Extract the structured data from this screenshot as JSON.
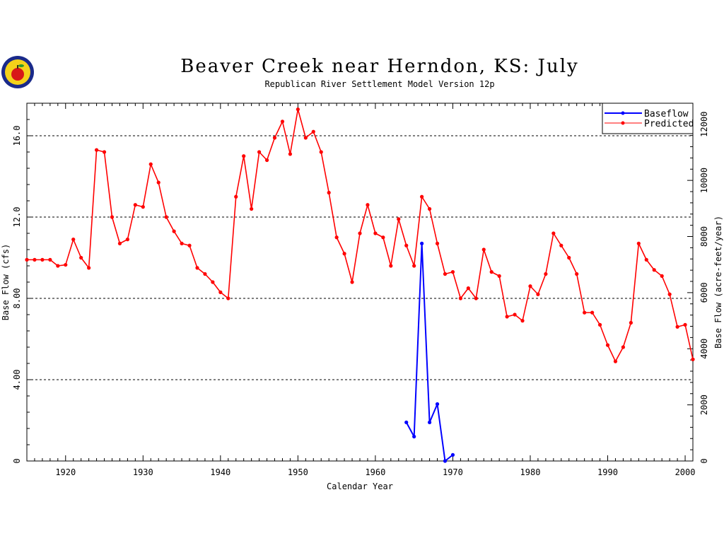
{
  "chart_data": {
    "type": "line",
    "title": "Beaver Creek near Herndon, KS: July",
    "subtitle": "Republican River Settlement Model Version 12p",
    "xlabel": "Calendar Year",
    "ylabel": "Base Flow (cfs)",
    "ylabel_right": "Base Flow (acre-feet/year)",
    "xlim": [
      1915,
      2001
    ],
    "ylim": [
      0,
      17.6
    ],
    "ylim_right": [
      0,
      12750
    ],
    "x_ticks": [
      1920,
      1930,
      1940,
      1950,
      1960,
      1970,
      1980,
      1990,
      2000
    ],
    "y_ticks": [
      0,
      4,
      8,
      12,
      16
    ],
    "y_tick_labels": [
      "0",
      "4.00",
      "8.00",
      "12.0",
      "16.0"
    ],
    "y_ticks_right": [
      0,
      2000,
      4000,
      6000,
      8000,
      10000,
      12000
    ],
    "y_tick_labels_right": [
      "0",
      "2000",
      "4000",
      "6000",
      "8000",
      "10000",
      "12000"
    ],
    "grid": "horizontal dashed",
    "legend_position": "top-right",
    "colors": {
      "baseflow": "#0000ff",
      "predicted": "#ff0000"
    },
    "series": [
      {
        "name": "Baseflow",
        "color": "#0000ff",
        "x": [
          1964,
          1965,
          1966,
          1967,
          1968,
          1969,
          1970
        ],
        "y": [
          1.9,
          1.2,
          10.7,
          1.9,
          2.8,
          0.0,
          0.3
        ]
      },
      {
        "name": "Predicted",
        "color": "#ff0000",
        "x": [
          1915,
          1916,
          1917,
          1918,
          1919,
          1920,
          1921,
          1922,
          1923,
          1924,
          1925,
          1926,
          1927,
          1928,
          1929,
          1930,
          1931,
          1932,
          1933,
          1934,
          1935,
          1936,
          1937,
          1938,
          1939,
          1940,
          1941,
          1942,
          1943,
          1944,
          1945,
          1946,
          1947,
          1948,
          1949,
          1950,
          1951,
          1952,
          1953,
          1954,
          1955,
          1956,
          1957,
          1958,
          1959,
          1960,
          1961,
          1962,
          1963,
          1964,
          1965,
          1966,
          1967,
          1968,
          1969,
          1970,
          1971,
          1972,
          1973,
          1974,
          1975,
          1976,
          1977,
          1978,
          1979,
          1980,
          1981,
          1982,
          1983,
          1984,
          1985,
          1986,
          1987,
          1988,
          1989,
          1990,
          1991,
          1992,
          1993,
          1994,
          1995,
          1996,
          1997,
          1998,
          1999,
          2000,
          2001
        ],
        "y": [
          9.9,
          9.9,
          9.9,
          9.9,
          9.6,
          9.65,
          10.9,
          10.0,
          9.5,
          15.3,
          15.2,
          12.0,
          10.7,
          10.9,
          12.6,
          12.5,
          14.6,
          13.7,
          12.0,
          11.3,
          10.7,
          10.6,
          9.5,
          9.2,
          8.8,
          8.3,
          8.0,
          13.0,
          15.0,
          12.4,
          15.2,
          14.8,
          15.9,
          16.7,
          15.1,
          17.3,
          15.9,
          16.2,
          15.2,
          13.2,
          11.0,
          10.2,
          8.8,
          11.2,
          12.6,
          11.2,
          11.0,
          9.6,
          11.9,
          10.6,
          9.6,
          13.0,
          12.4,
          10.7,
          9.2,
          9.3,
          8.0,
          8.5,
          8.0,
          10.4,
          9.3,
          9.1,
          7.1,
          7.2,
          6.9,
          8.6,
          8.2,
          9.2,
          11.2,
          10.6,
          10.0,
          9.2,
          7.3,
          7.3,
          6.7,
          5.7,
          4.9,
          5.6,
          6.8,
          10.7,
          9.9,
          9.4,
          9.1,
          8.2,
          6.6,
          6.7,
          5.0
        ]
      }
    ]
  }
}
